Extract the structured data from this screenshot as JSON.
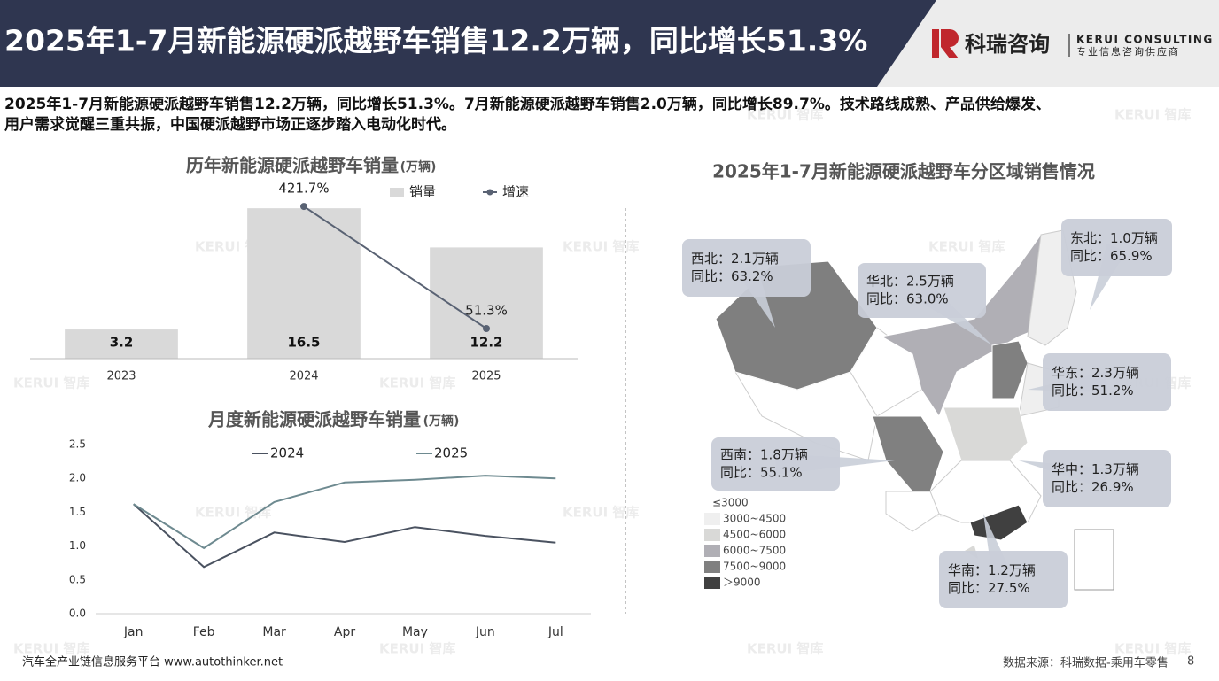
{
  "header": {
    "title": "2025年1-7月新能源硬派越野车销售12.2万辆，同比增长51.3%",
    "brand": "科瑞咨询",
    "brand_en": "KERUI CONSULTING",
    "brand_sub": "专业信息咨询供应商"
  },
  "summary": [
    "2025年1-7月新能源硬派越野车销售12.2万辆，同比增长51.3%。7月新能源硬派越野车销售2.0万辆，同比增长89.7%。技术路线成熟、产品供给爆发、",
    "用户需求觉醒三重共振，中国硬派越野市场正逐步踏入电动化时代。"
  ],
  "watermark": "KERUI 智库",
  "chart_data": [
    {
      "type": "bar",
      "title": "历年新能源硬派越野车销量",
      "subtitle": "(万辆)",
      "categories": [
        "2023",
        "2024",
        "2025"
      ],
      "ylim": [
        0,
        17
      ],
      "y2lim": [
        -40,
        430
      ],
      "series": [
        {
          "name": "销量",
          "color": "#d9d9d9",
          "values": [
            3.2,
            16.5,
            12.2
          ]
        },
        {
          "name": "增速",
          "type": "line",
          "axis": "y2",
          "color": "#596273",
          "values": [
            null,
            421.7,
            51.3
          ],
          "value_labels": [
            null,
            "421.7%",
            "51.3%"
          ]
        }
      ]
    },
    {
      "type": "line",
      "title": "月度新能源硬派越野车销量",
      "subtitle": "(万辆)",
      "categories": [
        "Jan",
        "Feb",
        "Mar",
        "Apr",
        "May",
        "Jun",
        "Jul"
      ],
      "ylim": [
        0,
        2.5
      ],
      "yticks": [
        {
          "value": 0,
          "label": "0.0"
        },
        0.5,
        {
          "value": 1,
          "label": "1.0"
        },
        1.5,
        {
          "value": 2,
          "label": "2.0"
        },
        2.5
      ],
      "grid": false,
      "series": [
        {
          "name": "2024",
          "color": "#4a5260",
          "values": [
            1.62,
            0.69,
            1.2,
            1.06,
            1.28,
            1.15,
            1.05
          ]
        },
        {
          "name": "2025",
          "color": "#6e8a90",
          "values": [
            1.62,
            0.97,
            1.65,
            1.94,
            1.98,
            2.04,
            2.0
          ]
        }
      ]
    }
  ],
  "map": {
    "title": "2025年1-7月新能源硬派越野车分区域销售情况",
    "regions": [
      {
        "line1": "西北：2.1万辆",
        "line2": "同比：63.2%"
      },
      {
        "line1": "华北：2.5万辆",
        "line2": "同比：63.0%"
      },
      {
        "line1": "东北：1.0万辆",
        "line2": "同比：65.9%"
      },
      {
        "line1": "华东：2.3万辆",
        "line2": "同比：51.2%"
      },
      {
        "line1": "西南：1.8万辆",
        "line2": "同比：55.1%"
      },
      {
        "line1": "华中：1.3万辆",
        "line2": "同比：26.9%"
      },
      {
        "line1": "华南：1.2万辆",
        "line2": "同比：27.5%"
      }
    ],
    "legend": [
      {
        "label": "≤3000",
        "color": "#ffffff"
      },
      {
        "label": "3000~4500",
        "color": "#efefef"
      },
      {
        "label": "4500~6000",
        "color": "#d9d9d7"
      },
      {
        "label": "6000~7500",
        "color": "#b0afb5"
      },
      {
        "label": "7500~9000",
        "color": "#808080"
      },
      {
        "label": "＞9000",
        "color": "#404040"
      }
    ]
  },
  "footer": {
    "left": "汽车全产业链信息服务平台 www.autothinker.net",
    "source": "数据来源：科瑞数据-乘用车零售",
    "page": "8"
  }
}
